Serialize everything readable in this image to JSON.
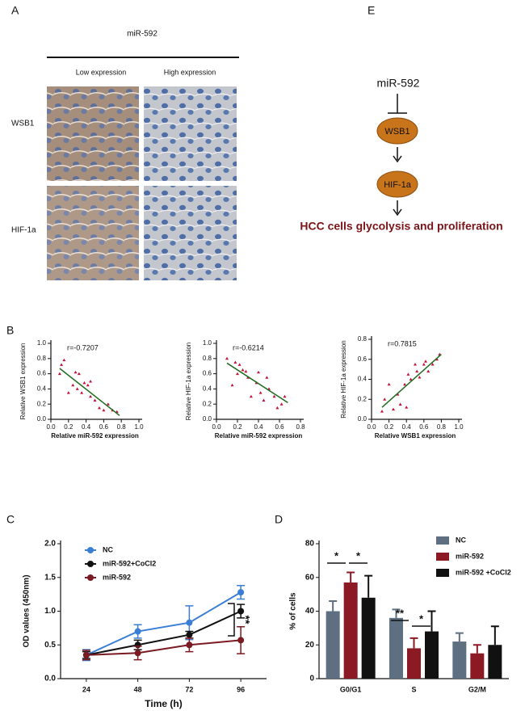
{
  "panel_labels": [
    "A",
    "B",
    "C",
    "D",
    "E"
  ],
  "ihc": {
    "title": "miR-592",
    "columns": [
      "Low expression",
      "High expression"
    ],
    "rows": [
      "WSB1",
      "HIF-1a"
    ]
  },
  "diagram": {
    "top": "miR-592",
    "nodes": [
      "WSB1",
      "HIF-1a"
    ],
    "outcome": "HCC cells glycolysis and proliferation"
  },
  "chart_data": [
    {
      "type": "scatter",
      "annotation": "r=-0.7207",
      "xlabel": "Relative miR-592 expression",
      "ylabel": "Relative  WSB1  expression",
      "color": "#c0143c",
      "x": [
        0.1,
        0.12,
        0.15,
        0.2,
        0.25,
        0.28,
        0.3,
        0.32,
        0.35,
        0.38,
        0.42,
        0.45,
        0.45,
        0.5,
        0.55,
        0.6,
        0.65,
        0.7,
        0.75
      ],
      "y": [
        0.6,
        0.72,
        0.78,
        0.35,
        0.45,
        0.62,
        0.4,
        0.6,
        0.35,
        0.48,
        0.45,
        0.5,
        0.3,
        0.25,
        0.15,
        0.12,
        0.2,
        0.12,
        0.1
      ],
      "trend": {
        "color": "#1f6b1f",
        "x": [
          0.1,
          0.78
        ],
        "y": [
          0.67,
          0.05
        ]
      },
      "xlim": [
        0,
        1
      ],
      "xticks": [
        {
          "value": 0,
          "label": "0.0"
        },
        0.2,
        0.4,
        0.6,
        0.8,
        {
          "value": 1,
          "label": "1.0"
        }
      ],
      "ylim": [
        0,
        1
      ],
      "yticks": [
        {
          "value": 0,
          "label": "0.0"
        },
        0.2,
        0.4,
        0.6,
        0.8,
        {
          "value": 1,
          "label": "1.0"
        }
      ]
    },
    {
      "type": "scatter",
      "annotation": "r=-0.6214",
      "xlabel": "Relative   miR-592   expression",
      "ylabel": "Relative  HIF-1a  expression",
      "color": "#c0143c",
      "x": [
        0.1,
        0.15,
        0.18,
        0.2,
        0.22,
        0.25,
        0.28,
        0.3,
        0.33,
        0.38,
        0.4,
        0.42,
        0.45,
        0.48,
        0.5,
        0.55,
        0.58,
        0.62,
        0.65
      ],
      "y": [
        0.8,
        0.45,
        0.75,
        0.6,
        0.72,
        0.65,
        0.63,
        0.55,
        0.3,
        0.48,
        0.62,
        0.35,
        0.25,
        0.55,
        0.4,
        0.3,
        0.15,
        0.2,
        0.3
      ],
      "trend": {
        "color": "#1f6b1f",
        "x": [
          0.1,
          0.68
        ],
        "y": [
          0.74,
          0.22
        ]
      },
      "xlim": [
        0,
        0.8
      ],
      "xticks": [
        {
          "value": 0,
          "label": "0.0"
        },
        0.2,
        0.4,
        0.6,
        0.8
      ],
      "ylim": [
        0,
        1
      ],
      "yticks": [
        {
          "value": 0,
          "label": "0.0"
        },
        0.2,
        0.4,
        0.6,
        0.8,
        {
          "value": 1,
          "label": "1.0"
        }
      ]
    },
    {
      "type": "scatter",
      "annotation": "r=0.7815",
      "xlabel": "Relative  WSB1   expression",
      "ylabel": "Relative  HIF-1a  expression",
      "color": "#c0143c",
      "x": [
        0.12,
        0.15,
        0.2,
        0.25,
        0.3,
        0.33,
        0.38,
        0.4,
        0.42,
        0.45,
        0.5,
        0.52,
        0.55,
        0.6,
        0.62,
        0.65,
        0.7,
        0.75,
        0.78
      ],
      "y": [
        0.08,
        0.2,
        0.35,
        0.1,
        0.25,
        0.15,
        0.35,
        0.12,
        0.45,
        0.4,
        0.55,
        0.48,
        0.42,
        0.55,
        0.58,
        0.48,
        0.55,
        0.6,
        0.65
      ],
      "trend": {
        "color": "#1f6b1f",
        "x": [
          0.12,
          0.8
        ],
        "y": [
          0.12,
          0.65
        ]
      },
      "xlim": [
        0,
        1
      ],
      "xticks": [
        {
          "value": 0,
          "label": "0.0"
        },
        0.2,
        0.4,
        0.6,
        0.8,
        {
          "value": 1,
          "label": "1.0"
        }
      ],
      "ylim": [
        0,
        0.8
      ],
      "yticks": [
        {
          "value": 0,
          "label": "0.0"
        },
        0.2,
        0.4,
        0.6,
        0.8
      ]
    },
    {
      "type": "line",
      "xlabel": "Time (h)",
      "ylabel": "OD values (450nm)",
      "categories": [
        "24",
        "48",
        "72",
        "96"
      ],
      "ylim": [
        0,
        2
      ],
      "yticks": [
        {
          "value": 0,
          "label": "0.0"
        },
        0.5,
        {
          "value": 1,
          "label": "1.0"
        },
        1.5,
        {
          "value": 2,
          "label": "2.0"
        }
      ],
      "legend": "top-left",
      "annotations": [
        "**"
      ],
      "series": [
        {
          "name": "NC",
          "color": "#3a7fd5",
          "values": [
            0.35,
            0.7,
            0.83,
            1.28
          ],
          "errors": [
            0.08,
            0.1,
            0.25,
            0.1
          ]
        },
        {
          "name": "miR-592+CoCl2",
          "color": "#111111",
          "values": [
            0.35,
            0.5,
            0.65,
            1.0
          ],
          "errors": [
            0.05,
            0.07,
            0.05,
            0.1
          ]
        },
        {
          "name": "miR-592",
          "color": "#7a1a22",
          "values": [
            0.35,
            0.38,
            0.5,
            0.57
          ],
          "errors": [
            0.07,
            0.1,
            0.1,
            0.2
          ]
        }
      ]
    },
    {
      "type": "bar",
      "ylabel": "% of cells",
      "categories": [
        "G0/G1",
        "S",
        "G2/M"
      ],
      "ylim": [
        0,
        80
      ],
      "yticks": [
        0,
        20,
        40,
        60,
        80
      ],
      "legend": "top-right",
      "annotations": [
        "*",
        "*",
        "**",
        "*"
      ],
      "series": [
        {
          "name": "NC",
          "color": "#5f6f82",
          "values": [
            40,
            36,
            22
          ],
          "errors": [
            6,
            5,
            5
          ]
        },
        {
          "name": "miR-592",
          "color": "#8b1a24",
          "values": [
            57,
            18,
            15
          ],
          "errors": [
            6,
            6,
            5
          ]
        },
        {
          "name": "miR-592 +CoCl2",
          "color": "#111111",
          "values": [
            48,
            28,
            20
          ],
          "errors": [
            13,
            12,
            11
          ]
        }
      ]
    }
  ]
}
